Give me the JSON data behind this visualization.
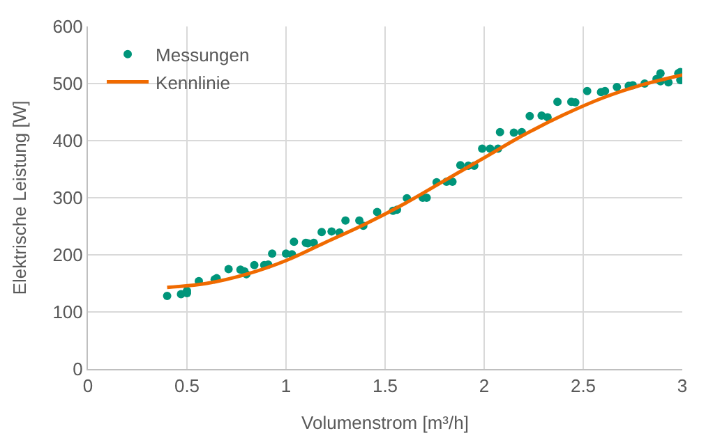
{
  "chart_data": {
    "type": "scatter",
    "xlabel": "Volumenstrom [m³/h]",
    "ylabel": "Elektrische Leistung [W]",
    "xlim": [
      0,
      3
    ],
    "xticks": [
      0,
      0.5,
      1,
      1.5,
      2,
      2.5,
      3
    ],
    "ylim": [
      0,
      600
    ],
    "yticks": [
      0,
      100,
      200,
      300,
      400,
      500,
      600
    ],
    "grid": true,
    "legend": "top left",
    "series": [
      {
        "name": "Messungen",
        "marker": "circle",
        "color": "#00957a",
        "x": [
          0.4,
          0.47,
          0.5,
          0.5,
          0.56,
          0.64,
          0.65,
          0.71,
          0.77,
          0.79,
          0.8,
          0.84,
          0.89,
          0.91,
          0.93,
          1.0,
          1.03,
          1.04,
          1.1,
          1.11,
          1.14,
          1.18,
          1.23,
          1.27,
          1.3,
          1.37,
          1.39,
          1.46,
          1.54,
          1.56,
          1.61,
          1.69,
          1.71,
          1.76,
          1.81,
          1.84,
          1.88,
          1.92,
          1.95,
          1.99,
          2.03,
          2.07,
          2.08,
          2.15,
          2.19,
          2.23,
          2.29,
          2.32,
          2.37,
          2.44,
          2.46,
          2.52,
          2.59,
          2.61,
          2.67,
          2.73,
          2.75,
          2.81,
          2.87,
          2.89,
          2.89,
          2.93,
          2.98,
          2.99,
          2.99
        ],
        "values": [
          128,
          131,
          137,
          133,
          154,
          157,
          159,
          175,
          174,
          171,
          166,
          182,
          182,
          183,
          202,
          202,
          201,
          223,
          221,
          220,
          221,
          240,
          241,
          239,
          260,
          260,
          251,
          275,
          277,
          279,
          299,
          300,
          300,
          327,
          328,
          328,
          357,
          356,
          356,
          386,
          386,
          386,
          415,
          414,
          415,
          443,
          444,
          441,
          468,
          468,
          467,
          487,
          485,
          487,
          494,
          496,
          497,
          500,
          508,
          518,
          504,
          502,
          518,
          506,
          520
        ]
      },
      {
        "name": "Kennlinie",
        "type": "line",
        "marker": "none",
        "line_style": "solid",
        "color": "#f06a00",
        "x": [
          0.4,
          0.6,
          0.8,
          1.0,
          1.2,
          1.4,
          1.6,
          1.8,
          2.0,
          2.2,
          2.4,
          2.6,
          2.8,
          3.0
        ],
        "values": [
          143,
          150,
          166,
          190,
          222,
          254,
          290,
          330,
          370,
          410,
          445,
          475,
          498,
          515
        ]
      }
    ]
  }
}
